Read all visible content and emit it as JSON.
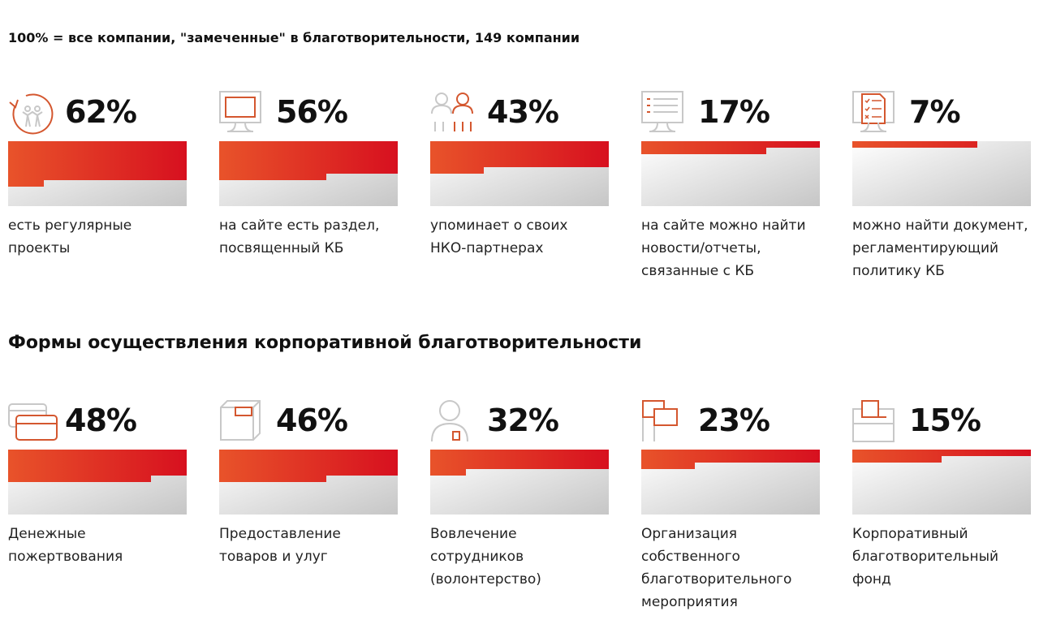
{
  "note": "100% = все компании, \"замеченные\" в благотворительности, 149 компании",
  "section_title": "Формы осуществления корпоративной благотворительности",
  "colors": {
    "red_start": "#e8532a",
    "red_end": "#d7101f",
    "gray_start": "#ffffff",
    "gray_end": "#c6c6c6",
    "icon_orange": "#d4572f",
    "icon_gray": "#c8c8c8"
  },
  "chart_data": [
    {
      "type": "bar",
      "title": "",
      "categories": [
        "есть регулярные проекты",
        "на сайте есть раздел, посвященный КБ",
        "упоминает о своих НКО-партнерах",
        "на сайте можно найти новости/отчеты, связанные с КБ",
        "можно найти документ, регламентирующий политику КБ"
      ],
      "values": [
        62,
        56,
        43,
        17,
        7
      ],
      "ylim": [
        0,
        100
      ]
    },
    {
      "type": "bar",
      "title": "Формы осуществления корпоративной благотворительности",
      "categories": [
        "Денежные пожертвования",
        "Предоставление товаров и улуг",
        "Вовлечение сотрудников (волонтерство)",
        "Организация собственного благотворительного мероприятия",
        "Корпоративный благотворительный фонд"
      ],
      "values": [
        48,
        46,
        32,
        23,
        15
      ],
      "ylim": [
        0,
        100
      ]
    }
  ],
  "row1": [
    {
      "pct": "62%",
      "value": 62,
      "label": "есть регулярные\nпроекты",
      "icon": "people-cycle-icon"
    },
    {
      "pct": "56%",
      "value": 56,
      "label": "на сайте есть раздел,\nпосвященный КБ",
      "icon": "monitor-icon"
    },
    {
      "pct": "43%",
      "value": 43,
      "label": "упоминает о своих\nНКО-партнерах",
      "icon": "partners-icon"
    },
    {
      "pct": "17%",
      "value": 17,
      "label": "на сайте можно найти\nновости/отчеты,\nсвязанные с КБ",
      "icon": "news-monitor-icon"
    },
    {
      "pct": "7%",
      "value": 7,
      "label": "можно найти документ,\nрегламентирующий\nполитику КБ",
      "icon": "document-checklist-icon"
    }
  ],
  "row2": [
    {
      "pct": "48%",
      "value": 48,
      "label": "Денежные\nпожертвования",
      "icon": "credit-card-icon"
    },
    {
      "pct": "46%",
      "value": 46,
      "label": "Предоставление\nтоваров и улуг",
      "icon": "box-icon"
    },
    {
      "pct": "32%",
      "value": 32,
      "label": "Вовлечение\nсотрудников\n(волонтерство)",
      "icon": "volunteer-icon"
    },
    {
      "pct": "23%",
      "value": 23,
      "label": "Организация\nсобственного\nблаготворительного\nмероприятия",
      "icon": "flags-icon"
    },
    {
      "pct": "15%",
      "value": 15,
      "label": "Корпоративный\nблаготворительный\nфонд",
      "icon": "ballot-box-icon"
    }
  ]
}
